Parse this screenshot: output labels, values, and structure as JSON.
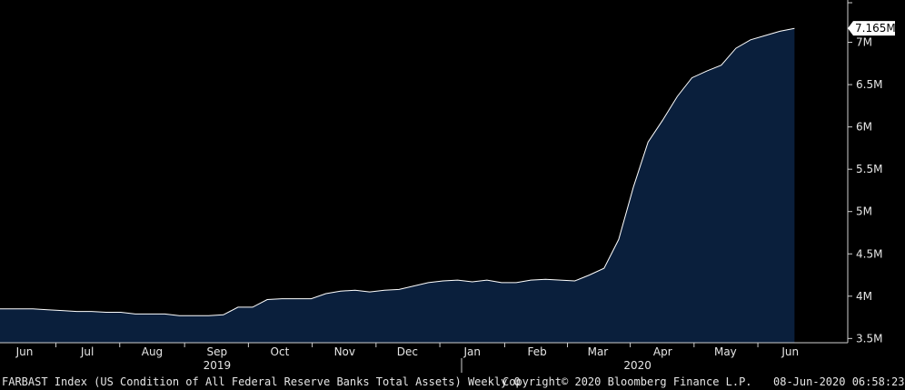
{
  "chart_data": {
    "type": "area",
    "x": [
      "2019-05-22",
      "2019-05-29",
      "2019-06-05",
      "2019-06-12",
      "2019-06-19",
      "2019-06-26",
      "2019-07-03",
      "2019-07-10",
      "2019-07-17",
      "2019-07-24",
      "2019-07-31",
      "2019-08-07",
      "2019-08-14",
      "2019-08-21",
      "2019-08-28",
      "2019-09-04",
      "2019-09-11",
      "2019-09-18",
      "2019-09-25",
      "2019-10-02",
      "2019-10-09",
      "2019-10-16",
      "2019-10-23",
      "2019-10-30",
      "2019-11-06",
      "2019-11-13",
      "2019-11-20",
      "2019-11-27",
      "2019-12-04",
      "2019-12-11",
      "2019-12-18",
      "2019-12-25",
      "2020-01-01",
      "2020-01-08",
      "2020-01-15",
      "2020-01-22",
      "2020-01-29",
      "2020-02-05",
      "2020-02-12",
      "2020-02-19",
      "2020-02-26",
      "2020-03-04",
      "2020-03-11",
      "2020-03-18",
      "2020-03-25",
      "2020-04-01",
      "2020-04-08",
      "2020-04-15",
      "2020-04-22",
      "2020-04-29",
      "2020-05-06",
      "2020-05-13",
      "2020-05-20",
      "2020-05-27",
      "2020-06-03"
    ],
    "values": [
      3.85,
      3.85,
      3.85,
      3.84,
      3.83,
      3.82,
      3.82,
      3.81,
      3.81,
      3.79,
      3.79,
      3.79,
      3.77,
      3.77,
      3.77,
      3.78,
      3.87,
      3.87,
      3.96,
      3.97,
      3.97,
      3.97,
      4.03,
      4.06,
      4.07,
      4.05,
      4.07,
      4.08,
      4.12,
      4.16,
      4.18,
      4.19,
      4.17,
      4.19,
      4.16,
      4.16,
      4.19,
      4.2,
      4.19,
      4.18,
      4.25,
      4.33,
      4.67,
      5.29,
      5.82,
      6.08,
      6.36,
      6.58,
      6.66,
      6.73,
      6.93,
      7.03,
      7.08,
      7.13,
      7.165
    ],
    "ylim": [
      3.45,
      7.5
    ],
    "yticks": [
      {
        "v": 3.5,
        "label": "3.5M"
      },
      {
        "v": 4,
        "label": "4M"
      },
      {
        "v": 4.5,
        "label": "4.5M"
      },
      {
        "v": 5,
        "label": "5M"
      },
      {
        "v": 5.5,
        "label": "5.5M"
      },
      {
        "v": 6,
        "label": "6M"
      },
      {
        "v": 6.5,
        "label": "6.5M"
      },
      {
        "v": 7,
        "label": "7M"
      }
    ],
    "xticks": [
      {
        "d": "2019-06-01",
        "label": "Jun"
      },
      {
        "d": "2019-07-01",
        "label": "Jul"
      },
      {
        "d": "2019-08-01",
        "label": "Aug"
      },
      {
        "d": "2019-09-01",
        "label": "Sep"
      },
      {
        "d": "2019-10-01",
        "label": "Oct"
      },
      {
        "d": "2019-11-01",
        "label": "Nov"
      },
      {
        "d": "2019-12-01",
        "label": "Dec"
      },
      {
        "d": "2020-01-01",
        "label": "Jan"
      },
      {
        "d": "2020-02-01",
        "label": "Feb"
      },
      {
        "d": "2020-03-01",
        "label": "Mar"
      },
      {
        "d": "2020-04-01",
        "label": "Apr"
      },
      {
        "d": "2020-05-01",
        "label": "May"
      },
      {
        "d": "2020-06-01",
        "label": "Jun"
      }
    ],
    "years": [
      {
        "label": "2019",
        "center": "2019-09-01"
      },
      {
        "label": "2020",
        "center": "2020-03-20"
      }
    ],
    "last_value_label": "7.165M",
    "grid": false,
    "colors": {
      "line": "#ffffff",
      "fill": "#0a1f3c",
      "background": "#000000",
      "text": "#e6e6e6"
    }
  },
  "footer": {
    "ticker": "FARBAST Index (US Condition of All Federal Reserve Banks Total Assets)  Weekly 0",
    "copyright": "Copyright© 2020 Bloomberg Finance L.P.",
    "timestamp": "08-Jun-2020 06:58:23"
  }
}
